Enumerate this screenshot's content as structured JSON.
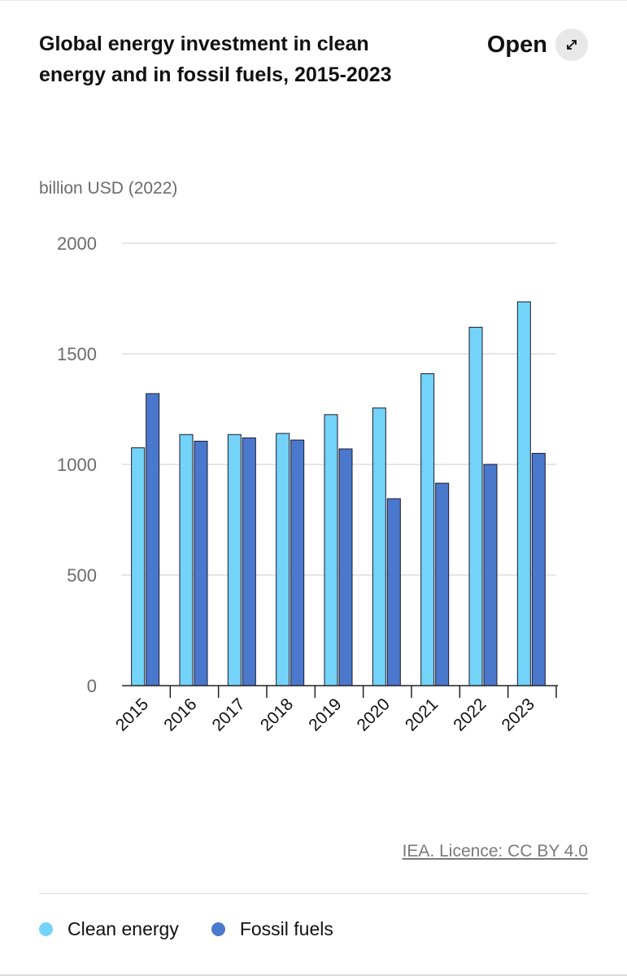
{
  "header": {
    "title": "Global energy investment in clean energy and in fossil fuels, 2015-2023",
    "open_label": "Open"
  },
  "icons": {
    "open": "expand-arrows-icon"
  },
  "colors": {
    "clean": "#74d3f8",
    "fossil": "#4a78cc",
    "grid": "#dddddd",
    "axis": "#222222",
    "tick_text": "#6b6b6b"
  },
  "source": {
    "text": "IEA. Licence: CC BY 4.0"
  },
  "legend": {
    "items": [
      {
        "label": "Clean energy",
        "color": "#74d3f8"
      },
      {
        "label": "Fossil fuels",
        "color": "#4a78cc"
      }
    ]
  },
  "chart_data": {
    "type": "bar",
    "title": "Global energy investment in clean energy and in fossil fuels, 2015-2023",
    "ylabel": "billion USD (2022)",
    "xlabel": "",
    "ylim": [
      0,
      2000
    ],
    "yticks": [
      0,
      500,
      1000,
      1500,
      2000
    ],
    "grid": true,
    "legend_position": "bottom",
    "categories": [
      "2015",
      "2016",
      "2017",
      "2018",
      "2019",
      "2020",
      "2021",
      "2022",
      "2023"
    ],
    "series": [
      {
        "name": "Clean energy",
        "values": [
          1075,
          1135,
          1135,
          1140,
          1225,
          1255,
          1410,
          1620,
          1735
        ]
      },
      {
        "name": "Fossil fuels",
        "values": [
          1320,
          1105,
          1120,
          1110,
          1070,
          845,
          915,
          1000,
          1050
        ]
      }
    ]
  }
}
